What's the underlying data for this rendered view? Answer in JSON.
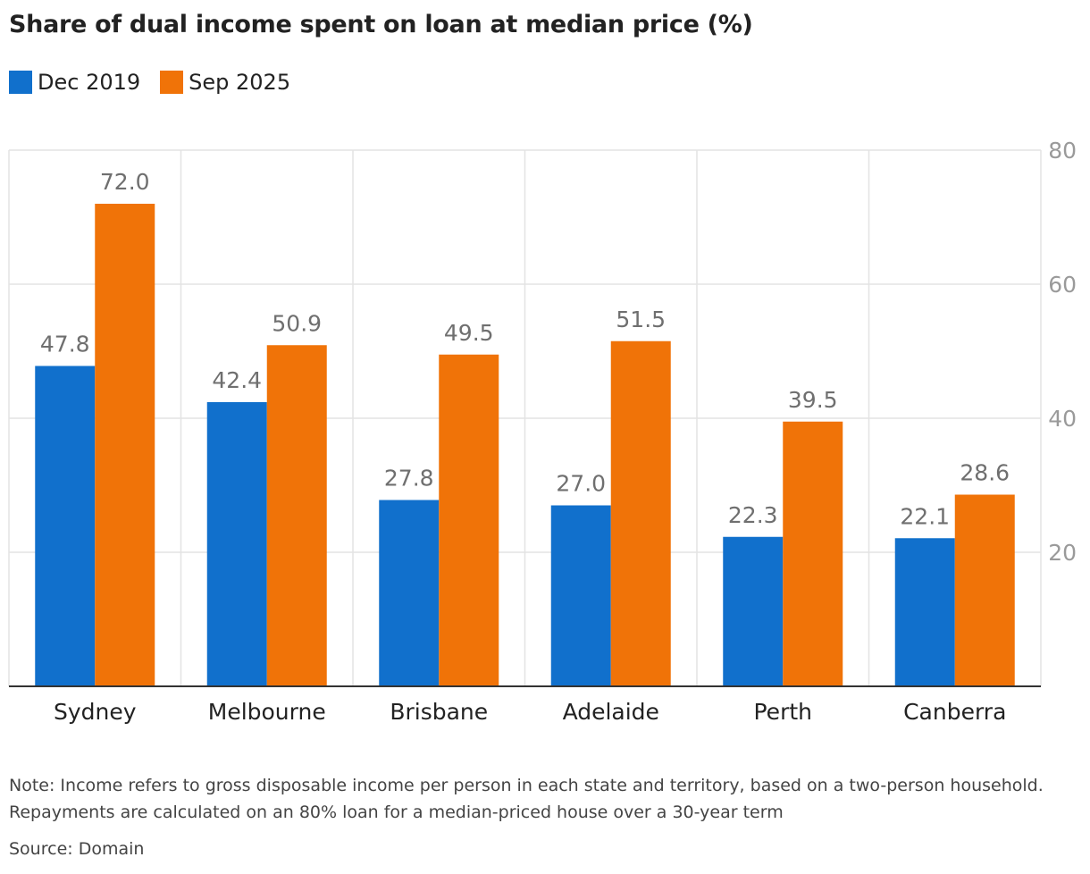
{
  "title": "Share of dual income spent on loan at median price (%)",
  "legend": [
    {
      "label": "Dec 2019",
      "color": "#1170cc"
    },
    {
      "label": "Sep 2025",
      "color": "#f07308"
    }
  ],
  "chart_data": {
    "type": "bar",
    "categories": [
      "Sydney",
      "Melbourne",
      "Brisbane",
      "Adelaide",
      "Perth",
      "Canberra"
    ],
    "series": [
      {
        "name": "Dec 2019",
        "color": "#1170cc",
        "values": [
          47.8,
          42.4,
          27.8,
          27.0,
          22.3,
          22.1
        ],
        "labels": [
          "47.8",
          "42.4",
          "27.8",
          "27.0",
          "22.3",
          "22.1"
        ]
      },
      {
        "name": "Sep 2025",
        "color": "#f07308",
        "values": [
          72.0,
          50.9,
          49.5,
          51.5,
          39.5,
          28.6
        ],
        "labels": [
          "72.0",
          "50.9",
          "49.5",
          "51.5",
          "39.5",
          "28.6"
        ]
      }
    ],
    "title": "Share of dual income spent on loan at median price (%)",
    "ylim": [
      0,
      80
    ],
    "yticks": [
      20,
      40,
      60,
      80
    ],
    "ytick_labels": [
      "20",
      "40",
      "60",
      "80"
    ],
    "y_axis_position": "right",
    "grid": true,
    "legend_position": "top-left"
  },
  "note": "Note: Income refers to gross disposable income per person in each state and territory, based on a two-person household. Repayments are calculated on an 80% loan for a median-priced house over a 30-year term",
  "source": "Source: Domain"
}
